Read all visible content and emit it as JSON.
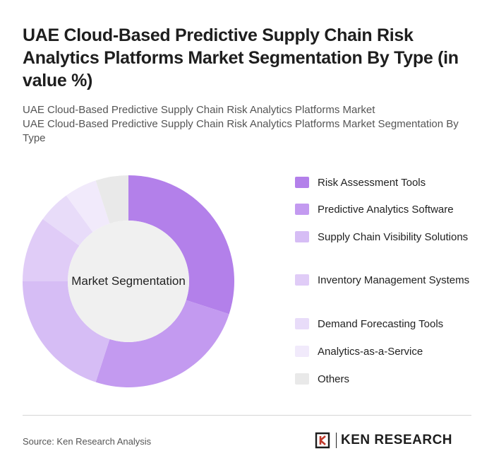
{
  "header": {
    "title": "UAE Cloud-Based Predictive Supply Chain Risk Analytics Platforms Market Segmentation By Type (in value %)",
    "subtitle_line1": "UAE Cloud-Based Predictive Supply Chain Risk Analytics Platforms Market",
    "subtitle_line2": "UAE Cloud-Based Predictive Supply Chain Risk Analytics Platforms Market Segmentation By Type"
  },
  "chart_data": {
    "type": "pie",
    "donut": true,
    "center_label": "Market Segmentation",
    "legend_position": "right",
    "categories": [
      "Risk Assessment Tools",
      "Predictive Analytics Software",
      "Supply Chain Visibility Solutions",
      "Inventory Management Systems",
      "Demand Forecasting Tools",
      "Analytics-as-a-Service",
      "Others"
    ],
    "values": [
      30,
      25,
      20,
      10,
      5,
      5,
      5
    ],
    "colors": [
      "#b380ea",
      "#c39af0",
      "#d6bdf5",
      "#e0ccf7",
      "#e8dcf9",
      "#f1eafb",
      "#e9e9e9"
    ]
  },
  "footer": {
    "source": "Source: Ken Research Analysis",
    "logo_text": "KEN RESEARCH"
  }
}
